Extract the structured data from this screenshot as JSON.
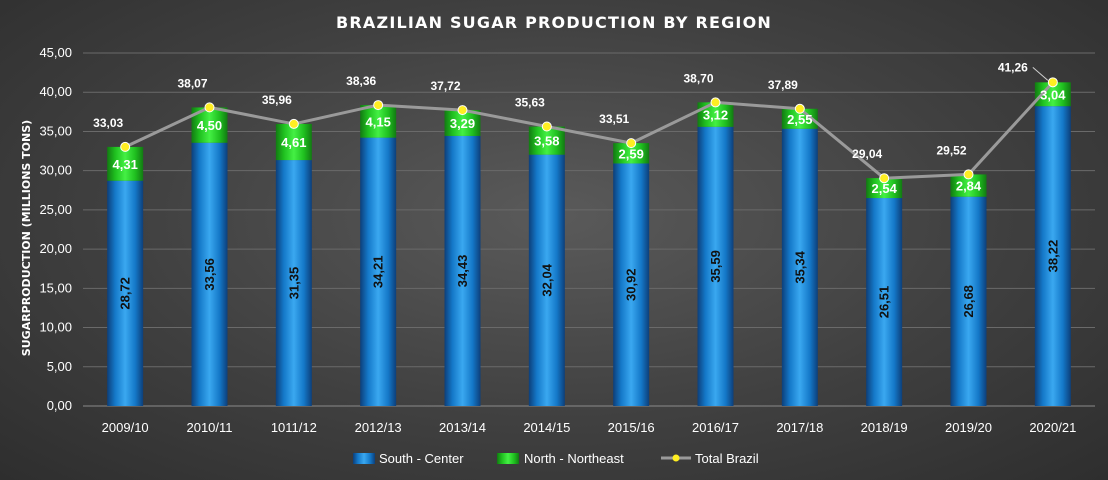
{
  "chart_data": {
    "type": "bar",
    "stacked": true,
    "title": "BRAZILIAN SUGAR PRODUCTION  BY REGION",
    "ylabel": "SUGARPRODUCTION (MILLIONS TONS)",
    "xlabel": "",
    "ylim": [
      0,
      45
    ],
    "yticks": [
      "0,00",
      "5,00",
      "10,00",
      "15,00",
      "20,00",
      "25,00",
      "30,00",
      "35,00",
      "40,00",
      "45,00"
    ],
    "categories": [
      "2009/10",
      "2010/11",
      "1011/12",
      "2012/13",
      "2013/14",
      "2014/15",
      "2015/16",
      "2016/17",
      "2017/18",
      "2018/19",
      "2019/20",
      "2020/21"
    ],
    "series": [
      {
        "name": "South - Center",
        "kind": "bar",
        "color": "#1e8fdc",
        "values": [
          28.72,
          33.56,
          31.35,
          34.21,
          34.43,
          32.04,
          30.92,
          35.59,
          35.34,
          26.51,
          26.68,
          38.22
        ],
        "labels": [
          "28,72",
          "33,56",
          "31,35",
          "34,21",
          "34,43",
          "32,04",
          "30,92",
          "35,59",
          "35,34",
          "26,51",
          "26,68",
          "38,22"
        ]
      },
      {
        "name": "North - Northeast",
        "kind": "bar",
        "color": "#22cc22",
        "values": [
          4.31,
          4.5,
          4.61,
          4.15,
          3.29,
          3.58,
          2.59,
          3.12,
          2.55,
          2.54,
          2.84,
          3.04
        ],
        "labels": [
          "4,31",
          "4,50",
          "4,61",
          "4,15",
          "3,29",
          "3,58",
          "2,59",
          "3,12",
          "2,55",
          "2,54",
          "2,84",
          "3,04"
        ]
      },
      {
        "name": "Total Brazil",
        "kind": "line",
        "color": "#9a9a9a",
        "marker_color": "#ffee22",
        "values": [
          33.03,
          38.07,
          35.96,
          38.36,
          37.72,
          35.63,
          33.51,
          38.7,
          37.89,
          29.04,
          29.52,
          41.26
        ],
        "labels": [
          "33,03",
          "38,07",
          "35,96",
          "38,36",
          "37,72",
          "35,63",
          "33,51",
          "38,70",
          "37,89",
          "29,04",
          "29,52",
          "41,26"
        ]
      }
    ],
    "legend": {
      "position": "bottom"
    },
    "grid": true
  }
}
